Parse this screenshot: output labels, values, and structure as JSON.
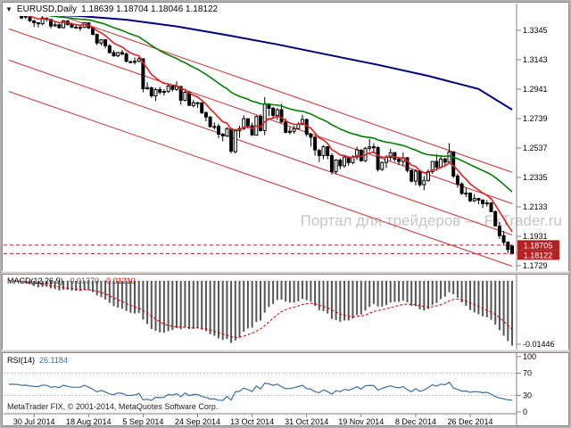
{
  "window": {
    "title_symbol": "EURUSD,Daily",
    "title_ohlc": "1.18639 1.18704 1.18046 1.18122"
  },
  "icons": {
    "chart_menu": "▼"
  },
  "watermark": "Портал для трейдеров — FxTrader.ru",
  "footer": {
    "copyright": "MetaTrader FIX, © 2001-2014, MetaQuotes Software Corp."
  },
  "chart_data": {
    "type": "candlestick",
    "symbol": "EURUSD",
    "timeframe": "Daily",
    "ylim": [
      1.1729,
      1.3345
    ],
    "price_labels": [
      "1.3345",
      "1.3143",
      "1.2941",
      "1.2739",
      "1.2537",
      "1.2335",
      "1.2133",
      "1.1931",
      "1.1729"
    ],
    "badges": [
      "1.18705",
      "1.18122"
    ],
    "time_labels": [
      {
        "text": "30 Jul 2014",
        "bar": 6
      },
      {
        "text": "18 Aug 2014",
        "bar": 19
      },
      {
        "text": "5 Sep 2014",
        "bar": 32
      },
      {
        "text": "24 Sep 2014",
        "bar": 45
      },
      {
        "text": "13 Oct 2014",
        "bar": 58
      },
      {
        "text": "31 Oct 2014",
        "bar": 71
      },
      {
        "text": "19 Nov 2014",
        "bar": 84
      },
      {
        "text": "8 Dec 2014",
        "bar": 97
      },
      {
        "text": "26 Dec 2014",
        "bar": 110
      }
    ],
    "last_ohlc": {
      "open": 1.18639,
      "high": 1.18704,
      "low": 1.18046,
      "close": 1.18122
    },
    "candles": [
      [
        1.3462,
        1.3472,
        1.3455,
        1.3465
      ],
      [
        1.3465,
        1.347,
        1.3452,
        1.3464
      ],
      [
        1.3464,
        1.3468,
        1.3445,
        1.3461
      ],
      [
        1.3461,
        1.3466,
        1.3421,
        1.343
      ],
      [
        1.3442,
        1.3444,
        1.3421,
        1.3437
      ],
      [
        1.3437,
        1.3445,
        1.3403,
        1.341
      ],
      [
        1.341,
        1.3417,
        1.3367,
        1.3397
      ],
      [
        1.3397,
        1.34,
        1.3366,
        1.339
      ],
      [
        1.339,
        1.3444,
        1.338,
        1.343
      ],
      [
        1.3428,
        1.3435,
        1.3405,
        1.342
      ],
      [
        1.342,
        1.3422,
        1.3358,
        1.3375
      ],
      [
        1.3375,
        1.3402,
        1.337,
        1.3383
      ],
      [
        1.3383,
        1.339,
        1.3356,
        1.3363
      ],
      [
        1.3363,
        1.3415,
        1.3357,
        1.341
      ],
      [
        1.3408,
        1.3416,
        1.3378,
        1.3385
      ],
      [
        1.3385,
        1.3398,
        1.336,
        1.3367
      ],
      [
        1.3367,
        1.3381,
        1.3355,
        1.3365
      ],
      [
        1.3365,
        1.3378,
        1.334,
        1.3365
      ],
      [
        1.3365,
        1.3401,
        1.3361,
        1.3398
      ],
      [
        1.3396,
        1.3399,
        1.3354,
        1.3362
      ],
      [
        1.3362,
        1.3368,
        1.331,
        1.3318
      ],
      [
        1.3318,
        1.3322,
        1.3242,
        1.3258
      ],
      [
        1.3258,
        1.3284,
        1.3241,
        1.328
      ],
      [
        1.328,
        1.3282,
        1.3221,
        1.324
      ],
      [
        1.3238,
        1.325,
        1.3185,
        1.3192
      ],
      [
        1.3192,
        1.321,
        1.3163,
        1.317
      ],
      [
        1.317,
        1.3197,
        1.316,
        1.3192
      ],
      [
        1.3192,
        1.3211,
        1.3172,
        1.3183
      ],
      [
        1.3183,
        1.3194,
        1.3125,
        1.3132
      ],
      [
        1.313,
        1.3136,
        1.3119,
        1.3128
      ],
      [
        1.3128,
        1.3159,
        1.311,
        1.3132
      ],
      [
        1.3132,
        1.316,
        1.3127,
        1.315
      ],
      [
        1.315,
        1.3152,
        1.292,
        1.2944
      ],
      [
        1.2944,
        1.2988,
        1.2937,
        1.2952
      ],
      [
        1.295,
        1.2959,
        1.2882,
        1.2895
      ],
      [
        1.2895,
        1.295,
        1.286,
        1.2938
      ],
      [
        1.2938,
        1.2957,
        1.2905,
        1.292
      ],
      [
        1.292,
        1.294,
        1.2897,
        1.2925
      ],
      [
        1.2925,
        1.298,
        1.2915,
        1.2962
      ],
      [
        1.296,
        1.2973,
        1.2925,
        1.294
      ],
      [
        1.294,
        1.2995,
        1.2928,
        1.2959
      ],
      [
        1.2959,
        1.2963,
        1.2835,
        1.2865
      ],
      [
        1.2865,
        1.293,
        1.2857,
        1.292
      ],
      [
        1.292,
        1.2926,
        1.2826,
        1.283
      ],
      [
        1.2828,
        1.2867,
        1.2816,
        1.2848
      ],
      [
        1.2848,
        1.2854,
        1.2813,
        1.2847
      ],
      [
        1.2847,
        1.285,
        1.277,
        1.278
      ],
      [
        1.278,
        1.2788,
        1.272,
        1.275
      ],
      [
        1.275,
        1.2755,
        1.2678,
        1.2684
      ],
      [
        1.2682,
        1.2712,
        1.2663,
        1.2685
      ],
      [
        1.2685,
        1.2702,
        1.2605,
        1.2632
      ],
      [
        1.2632,
        1.264,
        1.2583,
        1.262
      ],
      [
        1.262,
        1.268,
        1.2614,
        1.267
      ],
      [
        1.267,
        1.2675,
        1.2501,
        1.2515
      ],
      [
        1.2512,
        1.2662,
        1.25,
        1.2655
      ],
      [
        1.2655,
        1.269,
        1.2606,
        1.267
      ],
      [
        1.267,
        1.2762,
        1.266,
        1.2738
      ],
      [
        1.2738,
        1.274,
        1.267,
        1.269
      ],
      [
        1.269,
        1.2712,
        1.262,
        1.2627
      ],
      [
        1.2625,
        1.276,
        1.2622,
        1.2753
      ],
      [
        1.2753,
        1.277,
        1.265,
        1.2657
      ],
      [
        1.2657,
        1.2886,
        1.2625,
        1.2837
      ],
      [
        1.2837,
        1.2845,
        1.2755,
        1.281
      ],
      [
        1.281,
        1.282,
        1.2745,
        1.2761
      ],
      [
        1.2761,
        1.281,
        1.2728,
        1.28
      ],
      [
        1.28,
        1.284,
        1.271,
        1.2716
      ],
      [
        1.2716,
        1.274,
        1.2637,
        1.2645
      ],
      [
        1.2645,
        1.268,
        1.263,
        1.2652
      ],
      [
        1.2652,
        1.269,
        1.2635,
        1.267
      ],
      [
        1.267,
        1.2715,
        1.2665,
        1.27
      ],
      [
        1.27,
        1.2765,
        1.2692,
        1.2733
      ],
      [
        1.2733,
        1.274,
        1.2617,
        1.2632
      ],
      [
        1.2632,
        1.264,
        1.2547,
        1.2611
      ],
      [
        1.2611,
        1.262,
        1.2485,
        1.2524
      ],
      [
        1.252,
        1.253,
        1.244,
        1.2485
      ],
      [
        1.2485,
        1.2555,
        1.246,
        1.2546
      ],
      [
        1.2546,
        1.255,
        1.246,
        1.2485
      ],
      [
        1.2485,
        1.25,
        1.2355,
        1.2375
      ],
      [
        1.2375,
        1.246,
        1.2358,
        1.2455
      ],
      [
        1.2453,
        1.2465,
        1.2392,
        1.2415
      ],
      [
        1.2415,
        1.249,
        1.24,
        1.2475
      ],
      [
        1.2475,
        1.248,
        1.2415,
        1.2437
      ],
      [
        1.2437,
        1.2488,
        1.2425,
        1.2475
      ],
      [
        1.2475,
        1.2545,
        1.2455,
        1.2525
      ],
      [
        1.2522,
        1.253,
        1.2443,
        1.245
      ],
      [
        1.245,
        1.2545,
        1.244,
        1.2535
      ],
      [
        1.2535,
        1.26,
        1.2515,
        1.2545
      ],
      [
        1.2545,
        1.257,
        1.25,
        1.254
      ],
      [
        1.254,
        1.255,
        1.2375,
        1.239
      ],
      [
        1.239,
        1.2444,
        1.238,
        1.2438
      ],
      [
        1.2438,
        1.2489,
        1.24,
        1.2473
      ],
      [
        1.2473,
        1.2532,
        1.245,
        1.2505
      ],
      [
        1.2505,
        1.251,
        1.2443,
        1.246
      ],
      [
        1.246,
        1.2477,
        1.242,
        1.2445
      ],
      [
        1.2445,
        1.2506,
        1.2413,
        1.247
      ],
      [
        1.247,
        1.2475,
        1.237,
        1.2383
      ],
      [
        1.2383,
        1.239,
        1.23,
        1.231
      ],
      [
        1.231,
        1.239,
        1.228,
        1.2378
      ],
      [
        1.2378,
        1.238,
        1.2271,
        1.2285
      ],
      [
        1.2285,
        1.2345,
        1.2247,
        1.2315
      ],
      [
        1.2315,
        1.239,
        1.2305,
        1.2375
      ],
      [
        1.2375,
        1.2448,
        1.236,
        1.2445
      ],
      [
        1.2445,
        1.2495,
        1.238,
        1.2405
      ],
      [
        1.2405,
        1.248,
        1.2395,
        1.2462
      ],
      [
        1.2462,
        1.247,
        1.241,
        1.244
      ],
      [
        1.244,
        1.257,
        1.243,
        1.251
      ],
      [
        1.251,
        1.2515,
        1.233,
        1.2345
      ],
      [
        1.2345,
        1.236,
        1.2265,
        1.229
      ],
      [
        1.229,
        1.2302,
        1.2216,
        1.2225
      ],
      [
        1.2225,
        1.2262,
        1.22,
        1.2227
      ],
      [
        1.2227,
        1.2233,
        1.2165,
        1.2175
      ],
      [
        1.2175,
        1.222,
        1.2165,
        1.219
      ],
      [
        1.219,
        1.2195,
        1.215,
        1.218
      ],
      [
        1.218,
        1.2185,
        1.2125,
        1.2155
      ],
      [
        1.2155,
        1.218,
        1.2135,
        1.216
      ],
      [
        1.216,
        1.2164,
        1.2096,
        1.21
      ],
      [
        1.21,
        1.2109,
        1.1998,
        1.2003
      ],
      [
        1.2,
        1.203,
        1.1914,
        1.1935
      ],
      [
        1.1935,
        1.1968,
        1.1871,
        1.189
      ],
      [
        1.189,
        1.1897,
        1.1813,
        1.184
      ],
      [
        1.18639,
        1.18704,
        1.18046,
        1.18122
      ]
    ],
    "overlays": {
      "ma_fast": {
        "type": "ema",
        "period": 8,
        "color": "#e02020"
      },
      "ma_mid": {
        "type": "ema",
        "period": 34,
        "color": "#008000"
      },
      "ma_slow": {
        "type": "polyline",
        "color": "#000080",
        "points": [
          [
            0,
            1.3458
          ],
          [
            16,
            1.3445
          ],
          [
            28,
            1.3418
          ],
          [
            40,
            1.3372
          ],
          [
            52,
            1.3312
          ],
          [
            64,
            1.3248
          ],
          [
            76,
            1.3178
          ],
          [
            88,
            1.3108
          ],
          [
            100,
            1.3032
          ],
          [
            112,
            1.2942
          ],
          [
            120,
            1.28
          ]
        ]
      },
      "channel": {
        "color": "#cc3333",
        "slope_per_bar": -0.001,
        "intercepts": [
          1.357,
          1.3355,
          1.314,
          1.2925
        ]
      },
      "hlines": [
        1.18705,
        1.18122
      ]
    },
    "indicators": {
      "macd": {
        "label": "MACD(12,26,9)",
        "fast": 12,
        "slow": 26,
        "signal_period": 9,
        "value_main": "-0.01370",
        "value_signal": "-0.01210",
        "axis_label": "-0.01446"
      },
      "rsi": {
        "label": "RSI(14)",
        "period": 14,
        "value": "26.1184",
        "levels": [
          30,
          70
        ],
        "axis_labels": [
          "100",
          "70",
          "30",
          "0"
        ]
      }
    },
    "colors": {
      "up": "#ffffff",
      "down": "#000000",
      "wick": "#000000",
      "hline": "#b22222",
      "badge": "#b22222",
      "macd_hist": "#555555",
      "macd_signal": "#cc0000",
      "rsi": "#3a6ea5",
      "axis": "#808080"
    }
  }
}
